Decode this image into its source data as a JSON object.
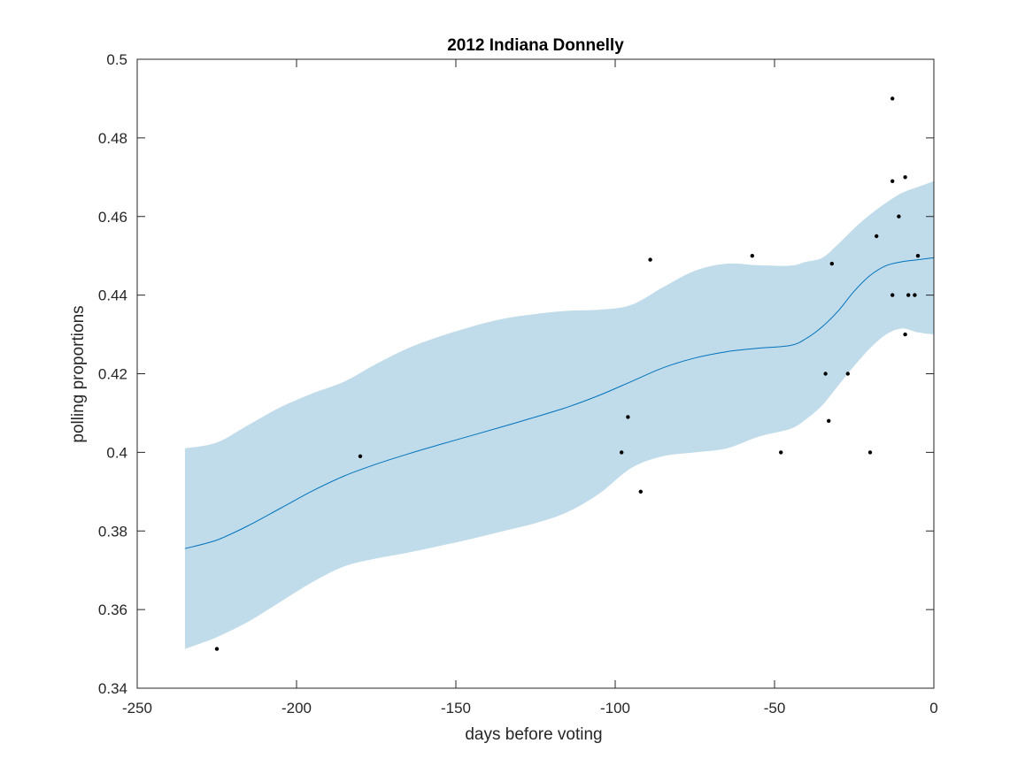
{
  "chart_data": {
    "type": "line",
    "title": "2012 Indiana Donnelly",
    "xlabel": "days before voting",
    "ylabel": "polling proportions",
    "xlim": [
      -250,
      0
    ],
    "ylim": [
      0.34,
      0.5
    ],
    "xticks": [
      -250,
      -200,
      -150,
      -100,
      -50,
      0
    ],
    "xtick_labels": [
      "-250",
      "-200",
      "-150",
      "-100",
      "-50",
      "0"
    ],
    "yticks": [
      0.34,
      0.36,
      0.38,
      0.4,
      0.42,
      0.44,
      0.46,
      0.48,
      0.5
    ],
    "ytick_labels": [
      "0.34",
      "0.36",
      "0.38",
      "0.4",
      "0.42",
      "0.44",
      "0.46",
      "0.48",
      "0.5"
    ],
    "grid": false,
    "colors": {
      "band": "#c0dcea",
      "line": "#0072bd",
      "points": "#000000",
      "axes": "#262626"
    },
    "fit_line": {
      "x": [
        -235,
        -225,
        -215,
        -205,
        -195,
        -185,
        -175,
        -165,
        -155,
        -145,
        -135,
        -125,
        -115,
        -105,
        -95,
        -85,
        -75,
        -65,
        -55,
        -45,
        -40,
        -35,
        -30,
        -25,
        -20,
        -15,
        -10,
        -5,
        0
      ],
      "y": [
        0.3755,
        0.3777,
        0.3814,
        0.3858,
        0.3902,
        0.394,
        0.397,
        0.3996,
        0.402,
        0.4043,
        0.4066,
        0.409,
        0.4115,
        0.4145,
        0.418,
        0.4215,
        0.424,
        0.4256,
        0.4265,
        0.4272,
        0.429,
        0.432,
        0.436,
        0.441,
        0.445,
        0.4475,
        0.4485,
        0.449,
        0.4495
      ]
    },
    "confidence_band": {
      "x": [
        -235,
        -225,
        -215,
        -205,
        -195,
        -185,
        -175,
        -165,
        -155,
        -145,
        -135,
        -125,
        -115,
        -105,
        -95,
        -85,
        -75,
        -65,
        -55,
        -45,
        -40,
        -35,
        -30,
        -25,
        -20,
        -15,
        -10,
        -5,
        0
      ],
      "upper": [
        0.401,
        0.4025,
        0.407,
        0.4115,
        0.415,
        0.418,
        0.4225,
        0.4265,
        0.4295,
        0.432,
        0.434,
        0.4352,
        0.436,
        0.4363,
        0.4375,
        0.442,
        0.4462,
        0.448,
        0.4476,
        0.4475,
        0.4485,
        0.4495,
        0.453,
        0.457,
        0.4605,
        0.4635,
        0.466,
        0.4675,
        0.469
      ],
      "lower": [
        0.35,
        0.353,
        0.357,
        0.362,
        0.367,
        0.371,
        0.373,
        0.3745,
        0.3762,
        0.378,
        0.38,
        0.382,
        0.3848,
        0.3895,
        0.396,
        0.399,
        0.4,
        0.401,
        0.404,
        0.406,
        0.4085,
        0.412,
        0.417,
        0.422,
        0.4265,
        0.43,
        0.4315,
        0.4305,
        0.43
      ]
    },
    "points": [
      {
        "x": -225,
        "y": 0.35
      },
      {
        "x": -180,
        "y": 0.399
      },
      {
        "x": -98,
        "y": 0.4
      },
      {
        "x": -96,
        "y": 0.409
      },
      {
        "x": -92,
        "y": 0.39
      },
      {
        "x": -89,
        "y": 0.449
      },
      {
        "x": -57,
        "y": 0.45
      },
      {
        "x": -48,
        "y": 0.4
      },
      {
        "x": -34,
        "y": 0.42
      },
      {
        "x": -33,
        "y": 0.408
      },
      {
        "x": -32,
        "y": 0.448
      },
      {
        "x": -27,
        "y": 0.42
      },
      {
        "x": -20,
        "y": 0.4
      },
      {
        "x": -18,
        "y": 0.455
      },
      {
        "x": -13,
        "y": 0.49
      },
      {
        "x": -13,
        "y": 0.469
      },
      {
        "x": -13,
        "y": 0.44
      },
      {
        "x": -11,
        "y": 0.46
      },
      {
        "x": -9,
        "y": 0.47
      },
      {
        "x": -9,
        "y": 0.43
      },
      {
        "x": -8,
        "y": 0.44
      },
      {
        "x": -6,
        "y": 0.44
      },
      {
        "x": -5,
        "y": 0.45
      }
    ]
  }
}
